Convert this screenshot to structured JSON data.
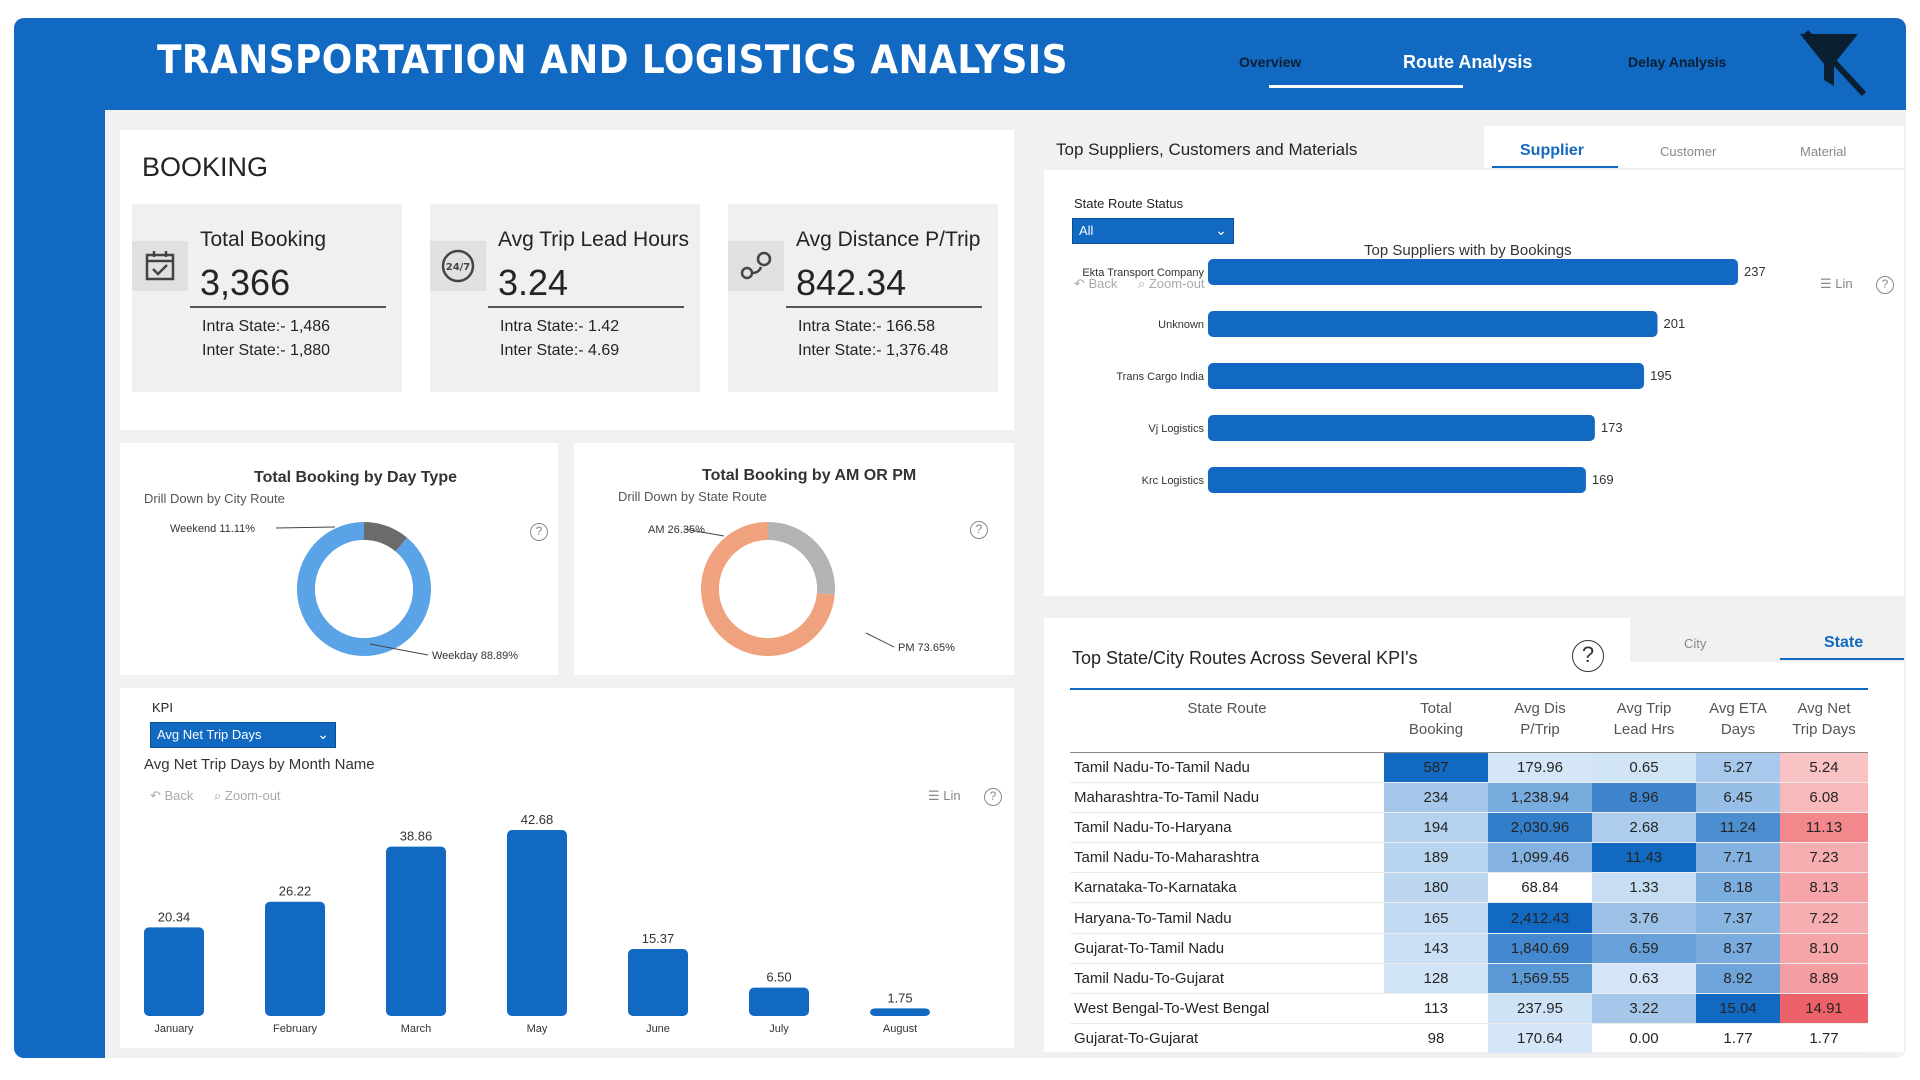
{
  "header": {
    "title": "TRANSPORTATION AND LOGISTICS ANALYSIS",
    "nav": [
      "Overview",
      "Route Analysis",
      "Delay Analysis"
    ],
    "active_nav": "Route Analysis"
  },
  "booking": {
    "heading": "BOOKING",
    "cards": [
      {
        "label": "Total Booking",
        "value": "3,366",
        "sub1": "Intra State:- 1,486",
        "sub2": "Inter State:- 1,880",
        "icon": "calendar-check-icon"
      },
      {
        "label": "Avg Trip Lead Hours",
        "value": "3.24",
        "sub1": "Intra State:- 1.42",
        "sub2": "Inter State:- 4.69",
        "icon": "clock-24-7-icon"
      },
      {
        "label": "Avg Distance P/Trip",
        "value": "842.34",
        "sub1": "Intra State:- 166.58",
        "sub2": "Inter State:- 1,376.48",
        "icon": "route-pin-icon"
      }
    ]
  },
  "day_type": {
    "title": "Total Booking by Day Type",
    "note": "Drill Down by City Route",
    "weekend_label": "Weekend 11.11%",
    "weekday_label": "Weekday 88.89%"
  },
  "am_pm": {
    "title": "Total Booking by AM OR PM",
    "note": "Drill Down by State Route",
    "am_label": "AM 26.35%",
    "pm_label": "PM 73.65%"
  },
  "kpi_selector": {
    "label": "KPI",
    "selected": "Avg Net Trip Days",
    "chart_title": "Avg Net Trip Days by Month Name",
    "back": "Back",
    "zoom_out": "Zoom-out",
    "lin": "Lin"
  },
  "suppliers": {
    "section_title": "Top Suppliers, Customers and Materials",
    "tabs": [
      "Supplier",
      "Customer",
      "Material"
    ],
    "filter_label": "State Route Status",
    "filter_value": "All",
    "chart_title": "Top Suppliers with by Bookings",
    "back": "Back",
    "zoom_out": "Zoom-out",
    "lin": "Lin"
  },
  "routes": {
    "title": "Top State/City  Routes Across Several KPI's",
    "tabs": [
      "City",
      "State"
    ],
    "columns": [
      "State Route",
      "Total Booking",
      "Avg Dis P/Trip",
      "Avg Trip Lead Hrs",
      "Avg ETA Days",
      "Avg Net Trip Days"
    ],
    "rows": [
      [
        "Tamil Nadu-To-Tamil Nadu",
        "587",
        "179.96",
        "0.65",
        "5.27",
        "5.24"
      ],
      [
        "Maharashtra-To-Tamil Nadu",
        "234",
        "1,238.94",
        "8.96",
        "6.45",
        "6.08"
      ],
      [
        "Tamil Nadu-To-Haryana",
        "194",
        "2,030.96",
        "2.68",
        "11.24",
        "11.13"
      ],
      [
        "Tamil Nadu-To-Maharashtra",
        "189",
        "1,099.46",
        "11.43",
        "7.71",
        "7.23"
      ],
      [
        "Karnataka-To-Karnataka",
        "180",
        "68.84",
        "1.33",
        "8.18",
        "8.13"
      ],
      [
        "Haryana-To-Tamil Nadu",
        "165",
        "2,412.43",
        "3.76",
        "7.37",
        "7.22"
      ],
      [
        "Gujarat-To-Tamil Nadu",
        "143",
        "1,840.69",
        "6.59",
        "8.37",
        "8.10"
      ],
      [
        "Tamil Nadu-To-Gujarat",
        "128",
        "1,569.55",
        "0.63",
        "8.92",
        "8.89"
      ],
      [
        "West Bengal-To-West Bengal",
        "113",
        "237.95",
        "3.22",
        "15.04",
        "14.91"
      ],
      [
        "Gujarat-To-Gujarat",
        "98",
        "170.64",
        "0.00",
        "1.77",
        "1.77"
      ]
    ]
  },
  "chart_data": [
    {
      "type": "pie",
      "title": "Total Booking by Day Type",
      "categories": [
        "Weekend",
        "Weekday"
      ],
      "values": [
        11.11,
        88.89
      ],
      "colors": [
        "#6b6b6b",
        "#5aa3e6"
      ]
    },
    {
      "type": "pie",
      "title": "Total Booking by AM OR PM",
      "categories": [
        "AM",
        "PM"
      ],
      "values": [
        26.35,
        73.65
      ],
      "colors": [
        "#b3b3b3",
        "#f0a27f"
      ]
    },
    {
      "type": "bar",
      "title": "Avg Net Trip Days by Month Name",
      "categories": [
        "January",
        "February",
        "March",
        "May",
        "June",
        "July",
        "August"
      ],
      "values": [
        20.34,
        26.22,
        38.86,
        42.68,
        15.37,
        6.5,
        1.75
      ],
      "value_labels": [
        "20.34",
        "26.22",
        "38.86",
        "42.68",
        "15.37",
        "6.50",
        "1.75"
      ],
      "color": "#1269c1"
    },
    {
      "type": "bar",
      "orientation": "horizontal",
      "title": "Top Suppliers with by Bookings",
      "categories": [
        "Ekta Transport Company",
        "Unknown",
        "Trans Cargo India",
        "Vj Logistics",
        "Krc Logistics"
      ],
      "values": [
        237,
        201,
        195,
        173,
        169
      ],
      "color": "#1269c1"
    }
  ]
}
